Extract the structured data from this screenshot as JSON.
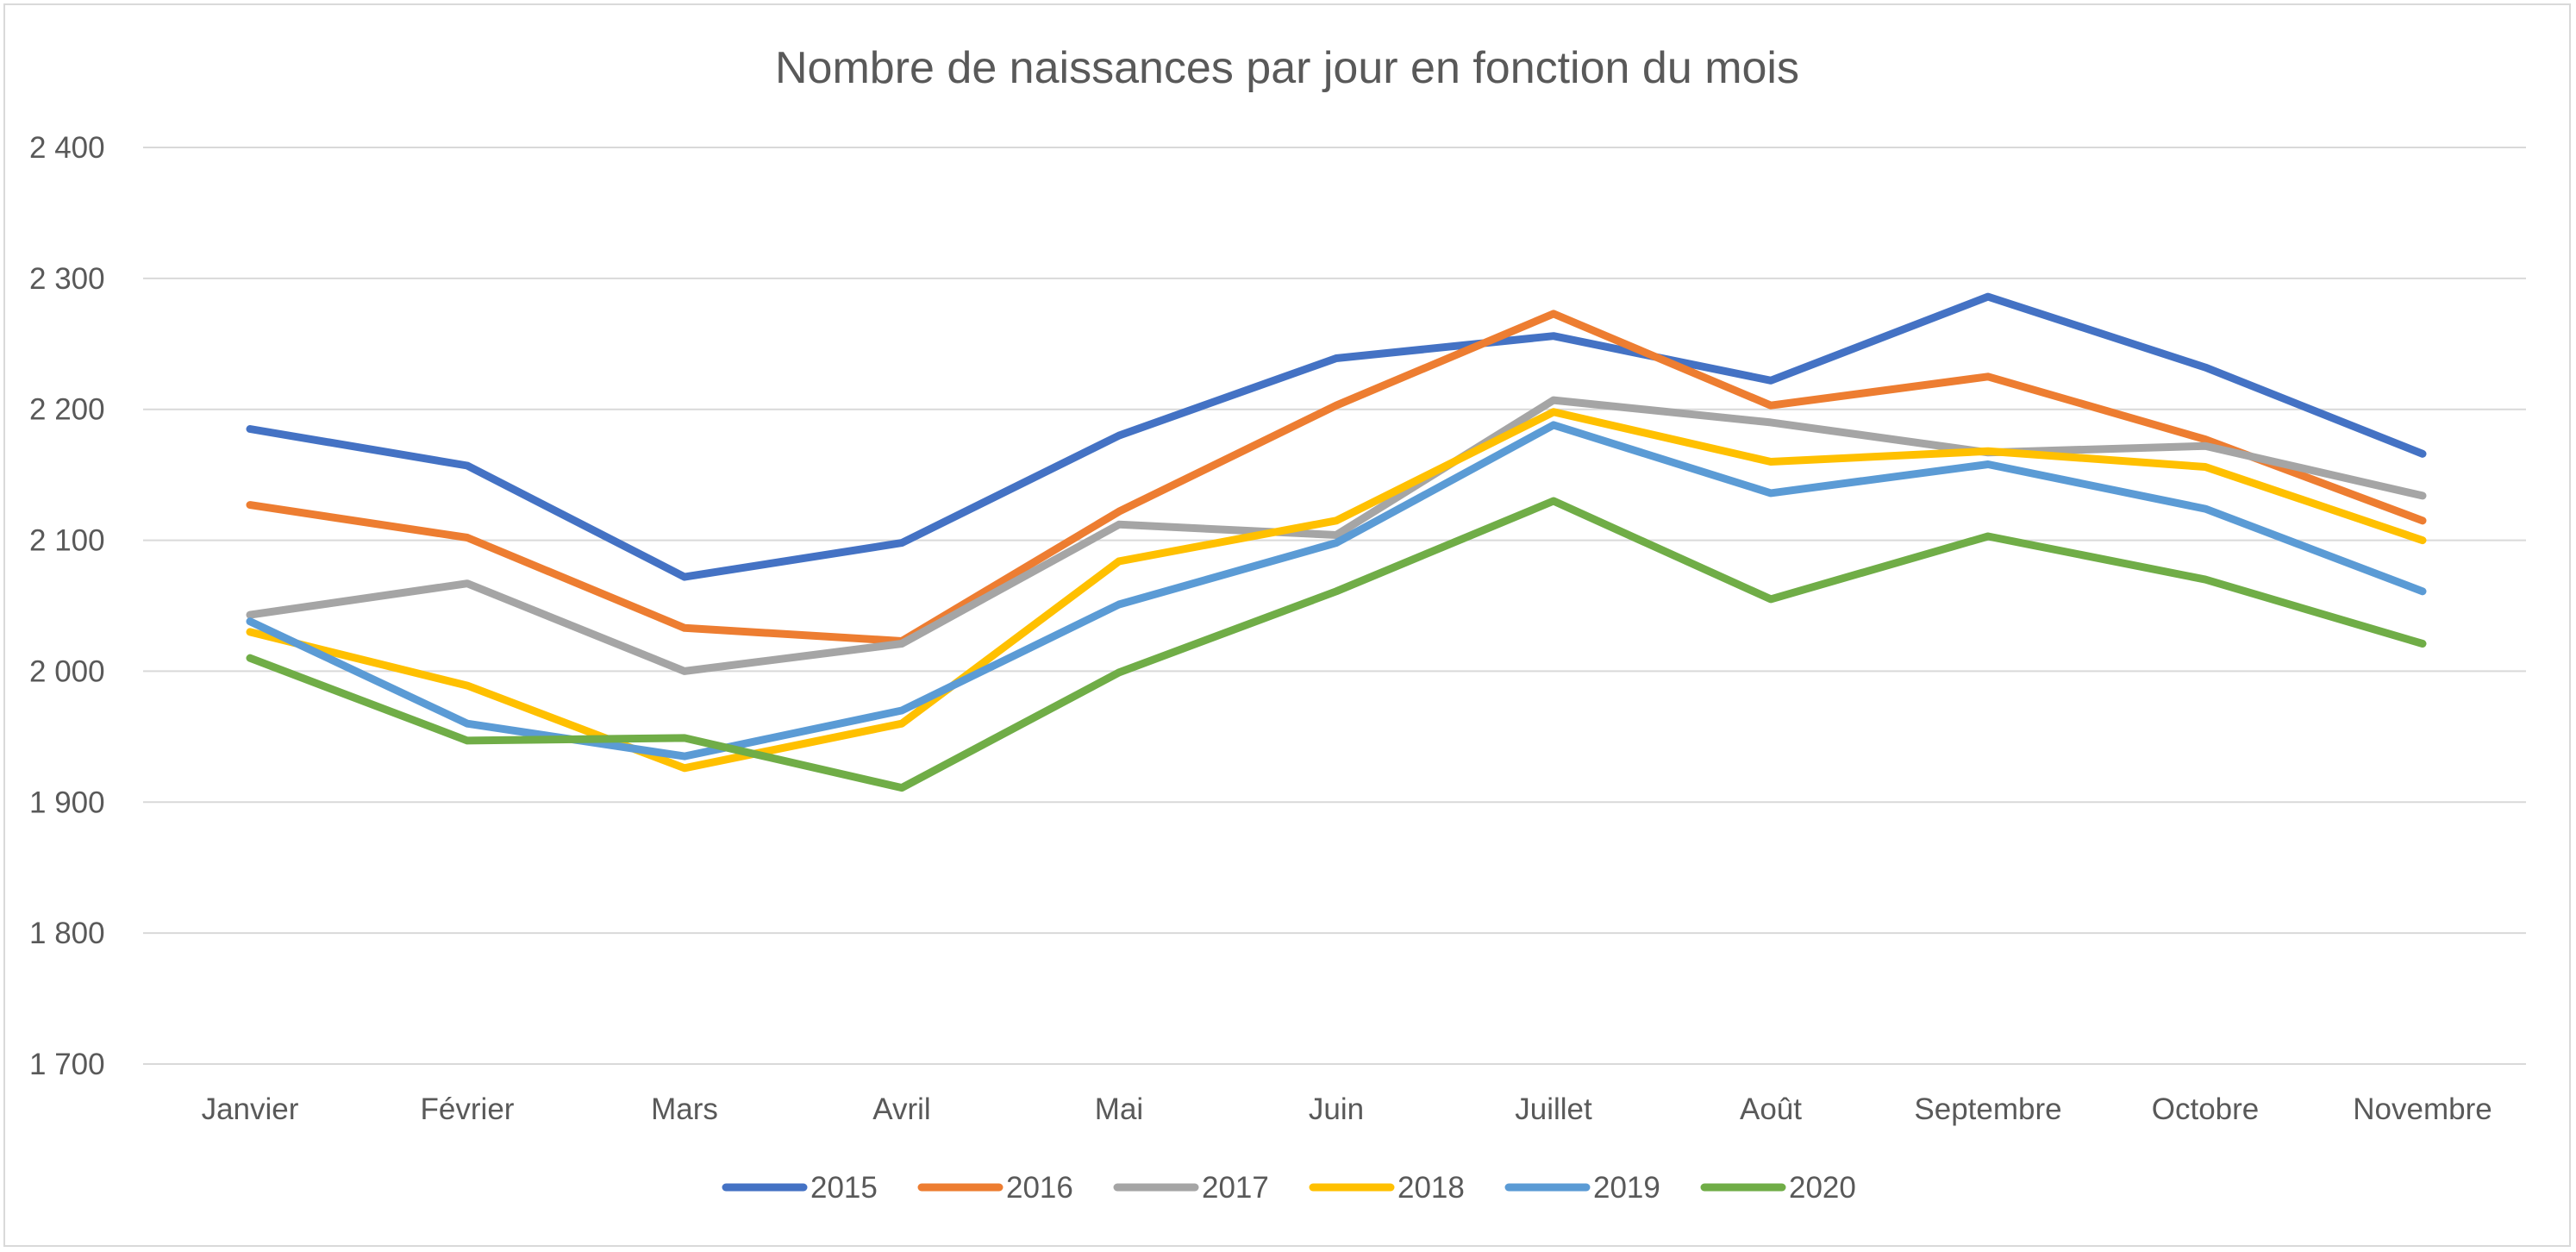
{
  "chart_data": {
    "type": "line",
    "title": "Nombre de naissances par jour en fonction du mois",
    "xlabel": "",
    "ylabel": "",
    "categories": [
      "Janvier",
      "Février",
      "Mars",
      "Avril",
      "Mai",
      "Juin",
      "Juillet",
      "Août",
      "Septembre",
      "Octobre",
      "Novembre"
    ],
    "ylim": [
      1700,
      2400
    ],
    "yticks": [
      1700,
      1800,
      1900,
      2000,
      2100,
      2200,
      2300,
      2400
    ],
    "ytick_labels": [
      "1 700",
      "1 800",
      "1 900",
      "2 000",
      "2 100",
      "2 200",
      "2 300",
      "2 400"
    ],
    "grid": "horizontal",
    "legend_position": "bottom",
    "series": [
      {
        "name": "2015",
        "color": "#4472c4",
        "values": [
          2185,
          2157,
          2072,
          2098,
          2180,
          2239,
          2256,
          2222,
          2286,
          2232,
          2166
        ]
      },
      {
        "name": "2016",
        "color": "#ed7d31",
        "values": [
          2127,
          2102,
          2033,
          2023,
          2122,
          2203,
          2273,
          2203,
          2225,
          2177,
          2115
        ]
      },
      {
        "name": "2017",
        "color": "#a5a5a5",
        "values": [
          2043,
          2067,
          2000,
          2021,
          2112,
          2104,
          2207,
          2190,
          2167,
          2172,
          2134
        ]
      },
      {
        "name": "2018",
        "color": "#ffc000",
        "values": [
          2030,
          1989,
          1926,
          1960,
          2084,
          2115,
          2198,
          2160,
          2168,
          2156,
          2100
        ]
      },
      {
        "name": "2019",
        "color": "#5b9bd5",
        "values": [
          2038,
          1960,
          1935,
          1970,
          2051,
          2098,
          2188,
          2136,
          2158,
          2124,
          2061
        ]
      },
      {
        "name": "2020",
        "color": "#70ad47",
        "values": [
          2010,
          1947,
          1949,
          1911,
          1999,
          2061,
          2130,
          2055,
          2103,
          2070,
          2021
        ]
      }
    ]
  }
}
